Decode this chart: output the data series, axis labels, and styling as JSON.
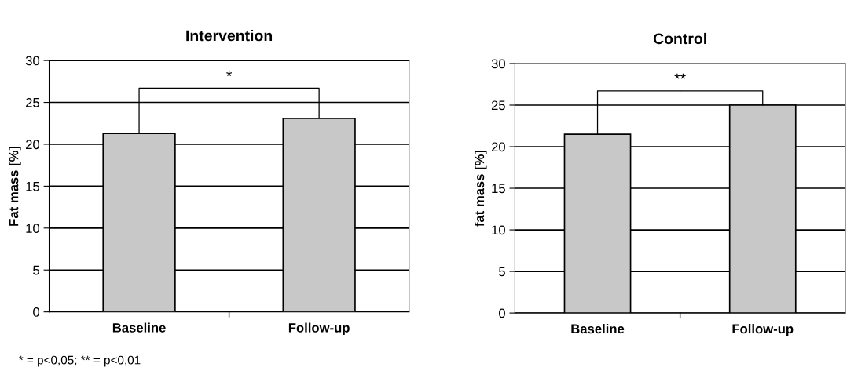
{
  "chart_data": [
    {
      "type": "bar",
      "title": "Intervention",
      "ylabel": "Fat mass [%]",
      "categories": [
        "Baseline",
        "Follow-up"
      ],
      "values": [
        21.3,
        23.1
      ],
      "color": "#c8c8c8",
      "ylim": [
        0,
        30
      ],
      "yticks": [
        0,
        5,
        10,
        15,
        20,
        25,
        30
      ],
      "grid": "y",
      "annotations": [
        {
          "text": "*",
          "x": "Baseline",
          "y": 21.3
        },
        "* = p<0,05; ** = p<0,01"
      ]
    },
    {
      "type": "bar",
      "title": "Control",
      "ylabel": "fat mass [%]",
      "categories": [
        "Baseline",
        "Follow-up"
      ],
      "values": [
        21.5,
        25.0
      ],
      "color": "#c8c8c8",
      "ylim": [
        0,
        30
      ],
      "yticks": [
        0,
        5,
        10,
        15,
        20,
        25,
        30
      ],
      "grid": "y",
      "annotations": [
        {
          "text": "**",
          "x": "Baseline",
          "y": 21.5
        }
      ]
    }
  ]
}
